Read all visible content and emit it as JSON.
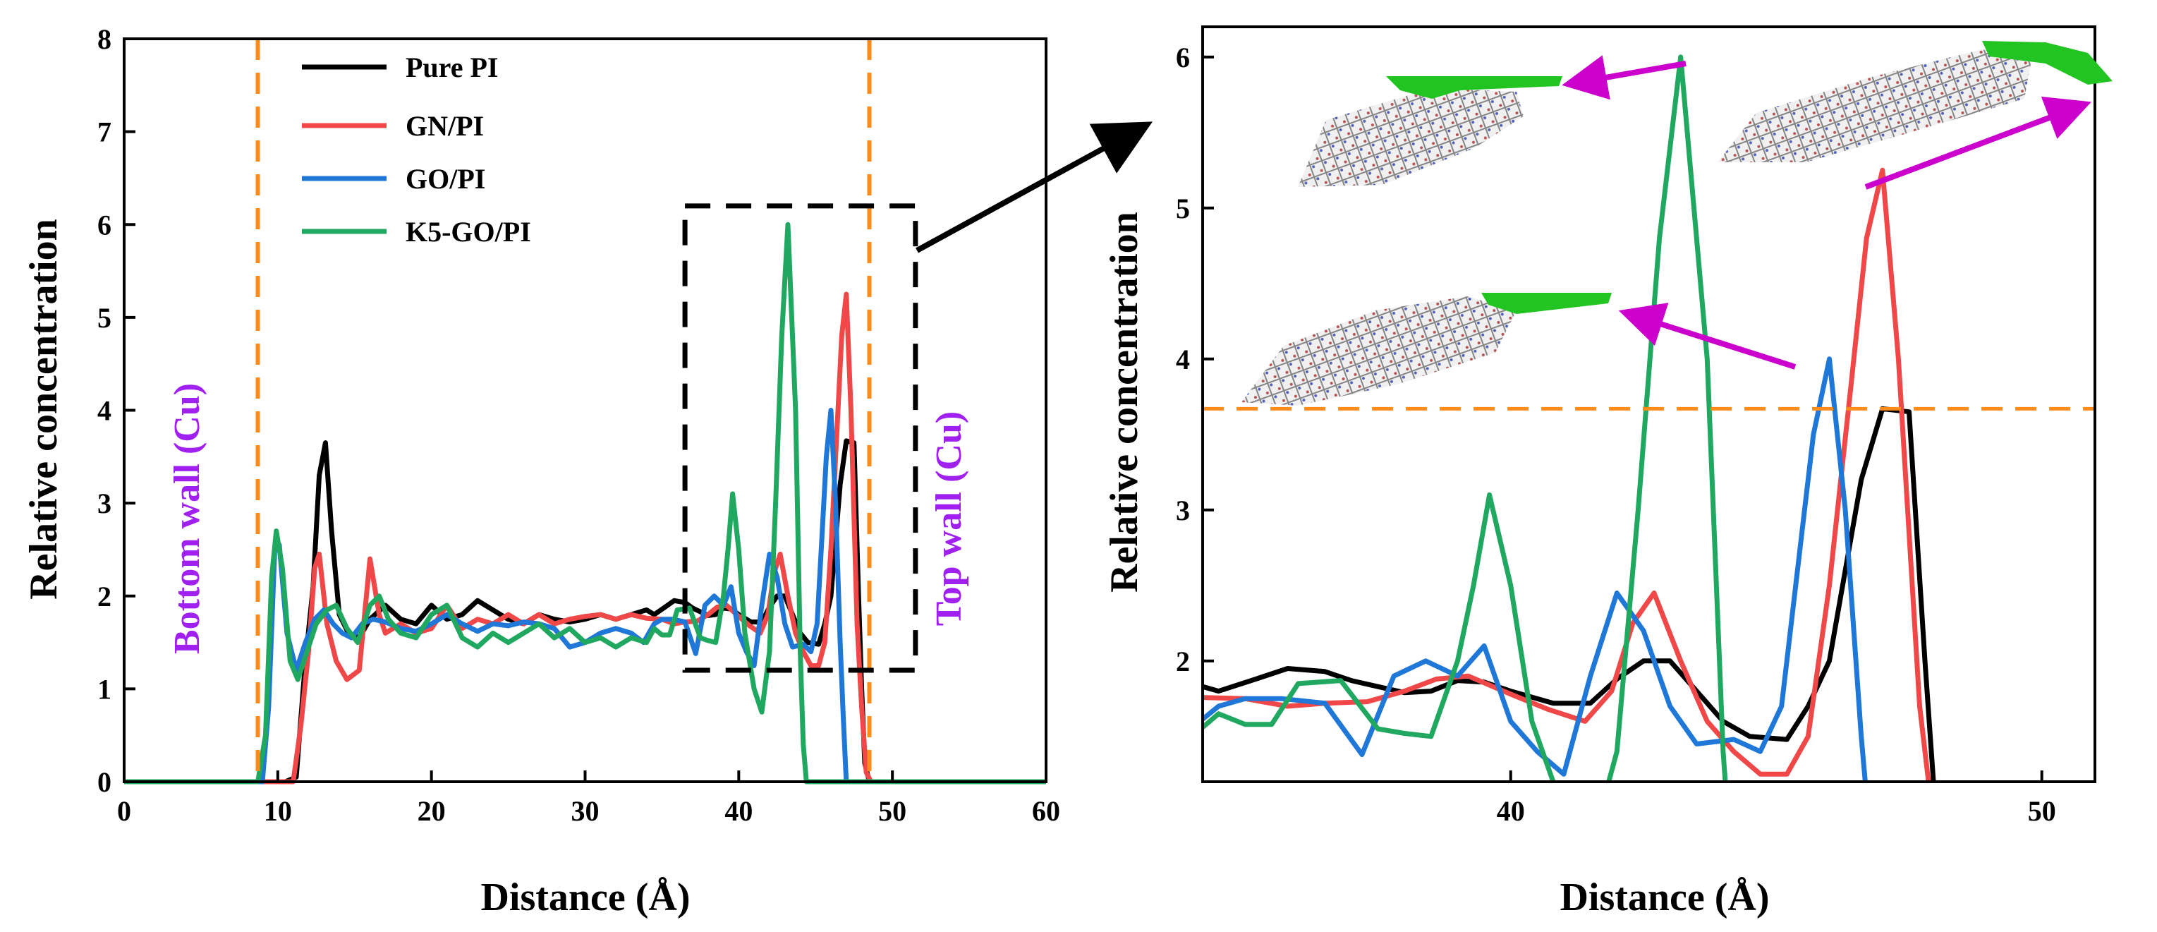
{
  "figure": {
    "left": {
      "type": "line",
      "xlabel": "Distance (Å)",
      "ylabel": "Relative concentration",
      "xlim": [
        0,
        60
      ],
      "ylim": [
        0,
        8
      ],
      "xticks": [
        0,
        10,
        20,
        30,
        40,
        50,
        60
      ],
      "yticks": [
        0,
        1,
        2,
        3,
        4,
        5,
        6,
        7,
        8
      ],
      "wall_lines_x": [
        8.7,
        48.5
      ],
      "bottom_wall_label": "Bottom wall (Cu)",
      "top_wall_label": "Top wall (Cu)",
      "zoom_box": {
        "x": [
          36.5,
          51.5
        ],
        "y": [
          1.2,
          6.2
        ]
      },
      "legend": [
        {
          "name": "Pure PI",
          "color": "#000000"
        },
        {
          "name": "GN/PI",
          "color": "#f04848"
        },
        {
          "name": "GO/PI",
          "color": "#1f78d8"
        },
        {
          "name": "K5-GO/PI",
          "color": "#20a860"
        }
      ]
    },
    "right": {
      "type": "line",
      "xlabel": "Distance (Å)",
      "ylabel": "Relative concentration",
      "xlim": [
        34.2,
        51
      ],
      "ylim": [
        1.2,
        6.2
      ],
      "xticks": [
        40,
        50
      ],
      "yticks": [
        2,
        3,
        4,
        5,
        6
      ],
      "threshold_y": 3.67
    }
  },
  "chart_data": {
    "type": "line",
    "xlabel": "Distance (Å)",
    "ylabel": "Relative concentration",
    "series": [
      {
        "name": "Pure PI",
        "color": "#000000",
        "points": [
          [
            0,
            0
          ],
          [
            10.5,
            0
          ],
          [
            11.2,
            0.05
          ],
          [
            11.8,
            1.3
          ],
          [
            12.3,
            2.1
          ],
          [
            12.7,
            3.3
          ],
          [
            13.1,
            3.65
          ],
          [
            13.5,
            2.7
          ],
          [
            14,
            1.8
          ],
          [
            14.6,
            1.6
          ],
          [
            15.3,
            1.55
          ],
          [
            16,
            1.75
          ],
          [
            17,
            1.9
          ],
          [
            18,
            1.75
          ],
          [
            19,
            1.7
          ],
          [
            20,
            1.9
          ],
          [
            21,
            1.75
          ],
          [
            22,
            1.8
          ],
          [
            23,
            1.95
          ],
          [
            24,
            1.85
          ],
          [
            25,
            1.75
          ],
          [
            26,
            1.7
          ],
          [
            27,
            1.8
          ],
          [
            28,
            1.75
          ],
          [
            29,
            1.72
          ],
          [
            30,
            1.75
          ],
          [
            31,
            1.8
          ],
          [
            32,
            1.75
          ],
          [
            33,
            1.8
          ],
          [
            34,
            1.85
          ],
          [
            34.5,
            1.8
          ],
          [
            35.2,
            1.88
          ],
          [
            35.8,
            1.95
          ],
          [
            36.5,
            1.93
          ],
          [
            37,
            1.87
          ],
          [
            37.5,
            1.83
          ],
          [
            38,
            1.79
          ],
          [
            38.5,
            1.8
          ],
          [
            39,
            1.87
          ],
          [
            39.5,
            1.86
          ],
          [
            40,
            1.8
          ],
          [
            40.8,
            1.72
          ],
          [
            41.5,
            1.72
          ],
          [
            42,
            1.88
          ],
          [
            42.5,
            2.0
          ],
          [
            43,
            2.0
          ],
          [
            43.5,
            1.8
          ],
          [
            44,
            1.6
          ],
          [
            44.5,
            1.5
          ],
          [
            45.2,
            1.48
          ],
          [
            45.6,
            1.7
          ],
          [
            46,
            2.0
          ],
          [
            46.3,
            2.6
          ],
          [
            46.6,
            3.2
          ],
          [
            47,
            3.67
          ],
          [
            47.5,
            3.65
          ],
          [
            47.8,
            2.0
          ],
          [
            48,
            1.0
          ],
          [
            48.2,
            0.2
          ],
          [
            48.5,
            0
          ],
          [
            60,
            0
          ]
        ]
      },
      {
        "name": "GN/PI",
        "color": "#f04848",
        "points": [
          [
            0,
            0
          ],
          [
            11,
            0
          ],
          [
            11.5,
            0.6
          ],
          [
            12,
            1.4
          ],
          [
            12.4,
            2.3
          ],
          [
            12.7,
            2.45
          ],
          [
            13.2,
            1.7
          ],
          [
            13.8,
            1.3
          ],
          [
            14.5,
            1.1
          ],
          [
            15.3,
            1.2
          ],
          [
            16,
            2.4
          ],
          [
            16.6,
            1.8
          ],
          [
            17,
            1.6
          ],
          [
            18,
            1.7
          ],
          [
            19,
            1.6
          ],
          [
            20,
            1.65
          ],
          [
            21,
            1.9
          ],
          [
            22,
            1.65
          ],
          [
            23,
            1.75
          ],
          [
            24,
            1.7
          ],
          [
            25,
            1.8
          ],
          [
            26,
            1.7
          ],
          [
            27,
            1.8
          ],
          [
            28,
            1.7
          ],
          [
            29,
            1.75
          ],
          [
            30,
            1.78
          ],
          [
            31,
            1.8
          ],
          [
            32,
            1.75
          ],
          [
            33,
            1.8
          ],
          [
            34,
            1.76
          ],
          [
            35,
            1.75
          ],
          [
            35.8,
            1.7
          ],
          [
            36.5,
            1.72
          ],
          [
            37.3,
            1.73
          ],
          [
            38,
            1.8
          ],
          [
            38.6,
            1.88
          ],
          [
            39.2,
            1.9
          ],
          [
            40,
            1.78
          ],
          [
            40.7,
            1.68
          ],
          [
            41.4,
            1.6
          ],
          [
            41.9,
            1.8
          ],
          [
            42.3,
            2.25
          ],
          [
            42.7,
            2.45
          ],
          [
            43.2,
            2.0
          ],
          [
            43.7,
            1.6
          ],
          [
            44.2,
            1.4
          ],
          [
            44.7,
            1.25
          ],
          [
            45.2,
            1.25
          ],
          [
            45.6,
            1.5
          ],
          [
            46,
            2.5
          ],
          [
            46.4,
            3.8
          ],
          [
            46.7,
            4.8
          ],
          [
            47,
            5.25
          ],
          [
            47.3,
            4.0
          ],
          [
            47.7,
            1.7
          ],
          [
            48,
            0.8
          ],
          [
            48.3,
            0.1
          ],
          [
            48.6,
            0
          ],
          [
            60,
            0
          ]
        ]
      },
      {
        "name": "GO/PI",
        "color": "#1f78d8",
        "points": [
          [
            0,
            0
          ],
          [
            9,
            0
          ],
          [
            9.4,
            0.8
          ],
          [
            9.8,
            2.5
          ],
          [
            10.1,
            2.55
          ],
          [
            10.6,
            1.6
          ],
          [
            11.2,
            1.2
          ],
          [
            11.8,
            1.5
          ],
          [
            12.4,
            1.75
          ],
          [
            13,
            1.85
          ],
          [
            13.6,
            1.7
          ],
          [
            14.2,
            1.6
          ],
          [
            14.8,
            1.55
          ],
          [
            15.5,
            1.7
          ],
          [
            16.2,
            1.75
          ],
          [
            17,
            1.72
          ],
          [
            18,
            1.65
          ],
          [
            19,
            1.62
          ],
          [
            20,
            1.7
          ],
          [
            21,
            1.8
          ],
          [
            22,
            1.7
          ],
          [
            23,
            1.62
          ],
          [
            24,
            1.7
          ],
          [
            25,
            1.68
          ],
          [
            26,
            1.72
          ],
          [
            27,
            1.7
          ],
          [
            28,
            1.65
          ],
          [
            29,
            1.45
          ],
          [
            30,
            1.5
          ],
          [
            31,
            1.6
          ],
          [
            32,
            1.65
          ],
          [
            33,
            1.6
          ],
          [
            33.8,
            1.5
          ],
          [
            34.5,
            1.7
          ],
          [
            35,
            1.75
          ],
          [
            35.7,
            1.75
          ],
          [
            36.5,
            1.72
          ],
          [
            37.2,
            1.38
          ],
          [
            37.8,
            1.9
          ],
          [
            38.4,
            2.0
          ],
          [
            39,
            1.9
          ],
          [
            39.5,
            2.1
          ],
          [
            40,
            1.6
          ],
          [
            40.5,
            1.4
          ],
          [
            41,
            1.25
          ],
          [
            41.5,
            1.9
          ],
          [
            42,
            2.45
          ],
          [
            42.5,
            2.2
          ],
          [
            43,
            1.7
          ],
          [
            43.5,
            1.45
          ],
          [
            44.2,
            1.48
          ],
          [
            44.7,
            1.4
          ],
          [
            45.1,
            1.7
          ],
          [
            45.4,
            2.6
          ],
          [
            45.7,
            3.5
          ],
          [
            46,
            4.0
          ],
          [
            46.3,
            3.0
          ],
          [
            46.6,
            1.5
          ],
          [
            46.8,
            0.7
          ],
          [
            47,
            0
          ],
          [
            60,
            0
          ]
        ]
      },
      {
        "name": "K5-GO/PI",
        "color": "#20a860",
        "points": [
          [
            0,
            0
          ],
          [
            8.7,
            0
          ],
          [
            9.2,
            0.5
          ],
          [
            9.6,
            2.2
          ],
          [
            9.9,
            2.7
          ],
          [
            10.3,
            2.3
          ],
          [
            10.8,
            1.3
          ],
          [
            11.3,
            1.1
          ],
          [
            11.8,
            1.35
          ],
          [
            12.5,
            1.7
          ],
          [
            13.2,
            1.85
          ],
          [
            13.8,
            1.9
          ],
          [
            14.5,
            1.65
          ],
          [
            15.2,
            1.5
          ],
          [
            16,
            1.9
          ],
          [
            16.6,
            2.0
          ],
          [
            17.2,
            1.75
          ],
          [
            18,
            1.6
          ],
          [
            19,
            1.55
          ],
          [
            20,
            1.8
          ],
          [
            21,
            1.9
          ],
          [
            22,
            1.55
          ],
          [
            23,
            1.45
          ],
          [
            24,
            1.6
          ],
          [
            25,
            1.5
          ],
          [
            26,
            1.6
          ],
          [
            27,
            1.7
          ],
          [
            28,
            1.55
          ],
          [
            29,
            1.65
          ],
          [
            30,
            1.5
          ],
          [
            31,
            1.55
          ],
          [
            32,
            1.45
          ],
          [
            33,
            1.55
          ],
          [
            34,
            1.5
          ],
          [
            34.5,
            1.65
          ],
          [
            35,
            1.58
          ],
          [
            35.5,
            1.58
          ],
          [
            36,
            1.85
          ],
          [
            36.8,
            1.87
          ],
          [
            37.5,
            1.55
          ],
          [
            38,
            1.52
          ],
          [
            38.5,
            1.5
          ],
          [
            39,
            2.0
          ],
          [
            39.3,
            2.5
          ],
          [
            39.6,
            3.1
          ],
          [
            40,
            2.5
          ],
          [
            40.4,
            1.6
          ],
          [
            41,
            1.0
          ],
          [
            41.5,
            0.75
          ],
          [
            42,
            1.4
          ],
          [
            42.4,
            3.0
          ],
          [
            42.8,
            4.8
          ],
          [
            43.2,
            6.0
          ],
          [
            43.7,
            4.0
          ],
          [
            44,
            1.4
          ],
          [
            44.2,
            0.4
          ],
          [
            44.4,
            0
          ],
          [
            60,
            0
          ]
        ]
      }
    ],
    "annotations": {
      "peak_labels_right_panel": [
        {
          "series": "K5-GO/PI",
          "x": 43.2,
          "y": 6.0
        },
        {
          "series": "GN/PI",
          "x": 47.0,
          "y": 5.25
        },
        {
          "series": "GO/PI",
          "x": 46.0,
          "y": 4.0
        }
      ]
    }
  }
}
